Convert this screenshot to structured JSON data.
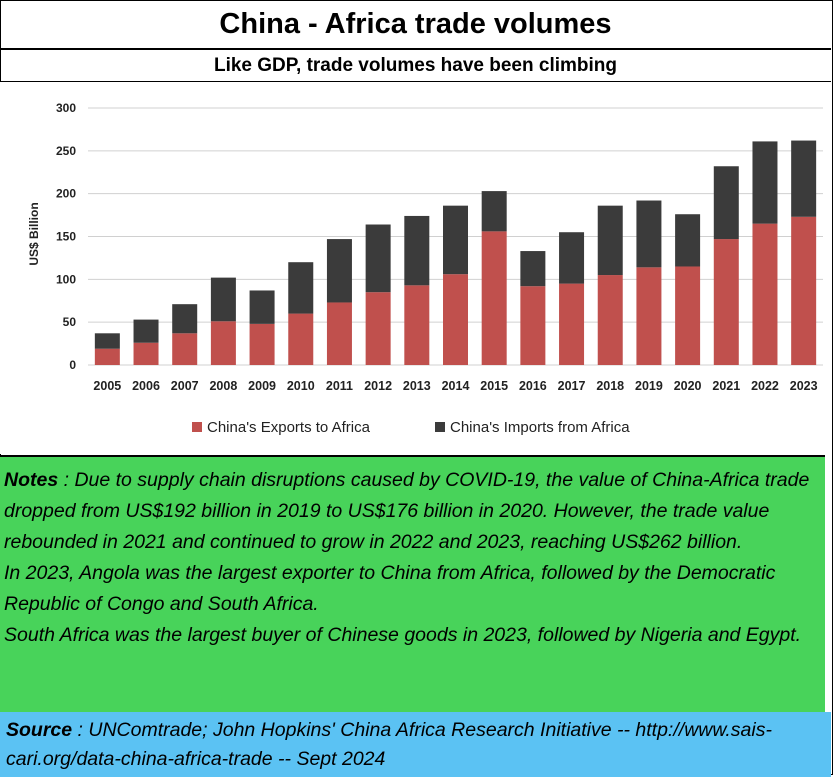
{
  "title": "China - Africa trade volumes",
  "subtitle": "Like GDP, trade volumes have been climbing",
  "chart_data": {
    "type": "bar",
    "stacked": true,
    "categories": [
      "2005",
      "2006",
      "2007",
      "2008",
      "2009",
      "2010",
      "2011",
      "2012",
      "2013",
      "2014",
      "2015",
      "2016",
      "2017",
      "2018",
      "2019",
      "2020",
      "2021",
      "2022",
      "2023"
    ],
    "series": [
      {
        "name": "China's Exports to Africa",
        "color": "#c0504d",
        "values": [
          19,
          26,
          37,
          51,
          48,
          60,
          73,
          85,
          93,
          106,
          156,
          92,
          95,
          105,
          114,
          115,
          147,
          165,
          173
        ]
      },
      {
        "name": "China's Imports from Africa",
        "color": "#3b3b3b",
        "values": [
          18,
          27,
          34,
          51,
          39,
          60,
          74,
          79,
          81,
          80,
          47,
          41,
          60,
          81,
          78,
          61,
          85,
          96,
          89
        ]
      }
    ],
    "ylabel": "US$ Billion",
    "xlabel": "",
    "ylim": [
      0,
      300
    ],
    "yticks": [
      0,
      50,
      100,
      150,
      200,
      250,
      300
    ],
    "grid": true,
    "legend": "bottom"
  },
  "notes": {
    "label": "Notes",
    "p1": " : Due to supply chain disruptions caused by COVID-19, the value of China-Africa trade dropped from US$192 billion in 2019 to US$176 billion in 2020. However, the trade value rebounded in 2021 and continued to grow in 2022 and 2023, reaching US$262 billion.",
    "p2": "In 2023, Angola was the largest exporter to China from Africa, followed by the Democratic Republic of Congo and South Africa.",
    "p3": "South Africa was the largest buyer of Chinese goods in 2023, followed by Nigeria and Egypt."
  },
  "source": {
    "label": "Source",
    "text": " : UNComtrade; John Hopkins' China Africa Research Initiative -- http://www.sais-cari.org/data-china-africa-trade -- Sept 2024"
  }
}
